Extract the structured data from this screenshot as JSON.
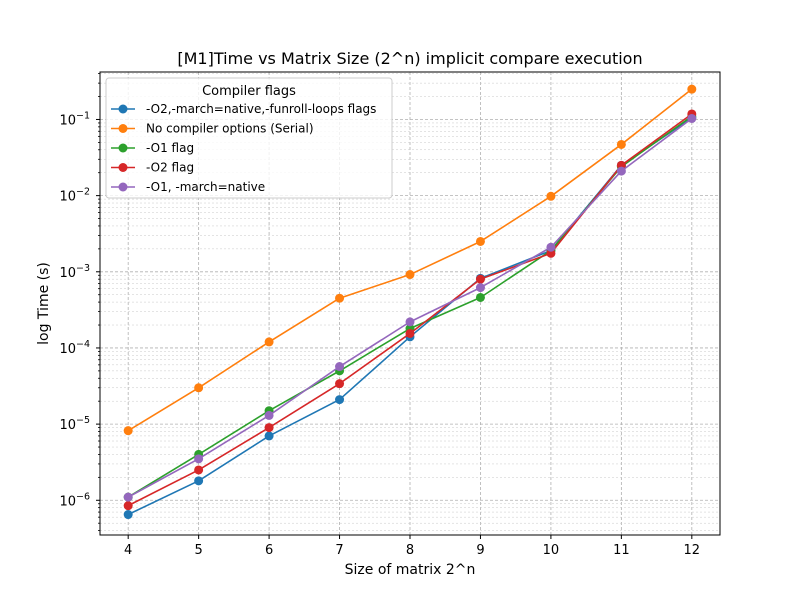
{
  "chart_data": {
    "type": "line",
    "title": "[M1]Time vs Matrix Size (2^n) implicit compare execution",
    "xlabel": "Size of matrix 2^n",
    "ylabel": "log Time (s)",
    "yscale": "log",
    "grid": true,
    "xlim": [
      3.6,
      12.4
    ],
    "ylim": [
      3.5e-07,
      0.42
    ],
    "x": [
      4,
      5,
      6,
      7,
      8,
      9,
      10,
      11,
      12
    ],
    "x_ticks": [
      "4",
      "5",
      "6",
      "7",
      "8",
      "9",
      "10",
      "11",
      "12"
    ],
    "y_tick_values": [
      1e-06,
      1e-05,
      0.0001,
      0.001,
      0.01,
      0.1
    ],
    "y_ticks": [
      {
        "base": "10",
        "exp": "−6"
      },
      {
        "base": "10",
        "exp": "−5"
      },
      {
        "base": "10",
        "exp": "−4"
      },
      {
        "base": "10",
        "exp": "−3"
      },
      {
        "base": "10",
        "exp": "−2"
      },
      {
        "base": "10",
        "exp": "−1"
      }
    ],
    "legend_title": "Compiler flags",
    "legend_location": "top-left",
    "series": [
      {
        "name": "-O2,-march=native,-funroll-loops flags",
        "color": "#1f77b4",
        "values": [
          6.5e-07,
          1.8e-06,
          7e-06,
          2.1e-05,
          0.00014,
          0.00082,
          0.0019,
          0.025,
          0.105
        ]
      },
      {
        "name": "No compiler options (Serial)",
        "color": "#ff7f0e",
        "values": [
          8.2e-06,
          3e-05,
          0.00012,
          0.00045,
          0.00092,
          0.0025,
          0.0098,
          0.047,
          0.25
        ]
      },
      {
        "name": "-O1 flag",
        "color": "#2ca02c",
        "values": [
          1.1e-06,
          4e-06,
          1.5e-05,
          5e-05,
          0.00018,
          0.00046,
          0.0019,
          0.024,
          0.11
        ]
      },
      {
        "name": "-O2 flag",
        "color": "#d62728",
        "values": [
          8.5e-07,
          2.5e-06,
          9e-06,
          3.4e-05,
          0.000155,
          0.0008,
          0.00175,
          0.025,
          0.118
        ]
      },
      {
        "name": "-O1, -march=native",
        "color": "#9467bd",
        "values": [
          1.1e-06,
          3.5e-06,
          1.3e-05,
          5.7e-05,
          0.00022,
          0.00062,
          0.0021,
          0.021,
          0.103
        ]
      }
    ]
  }
}
